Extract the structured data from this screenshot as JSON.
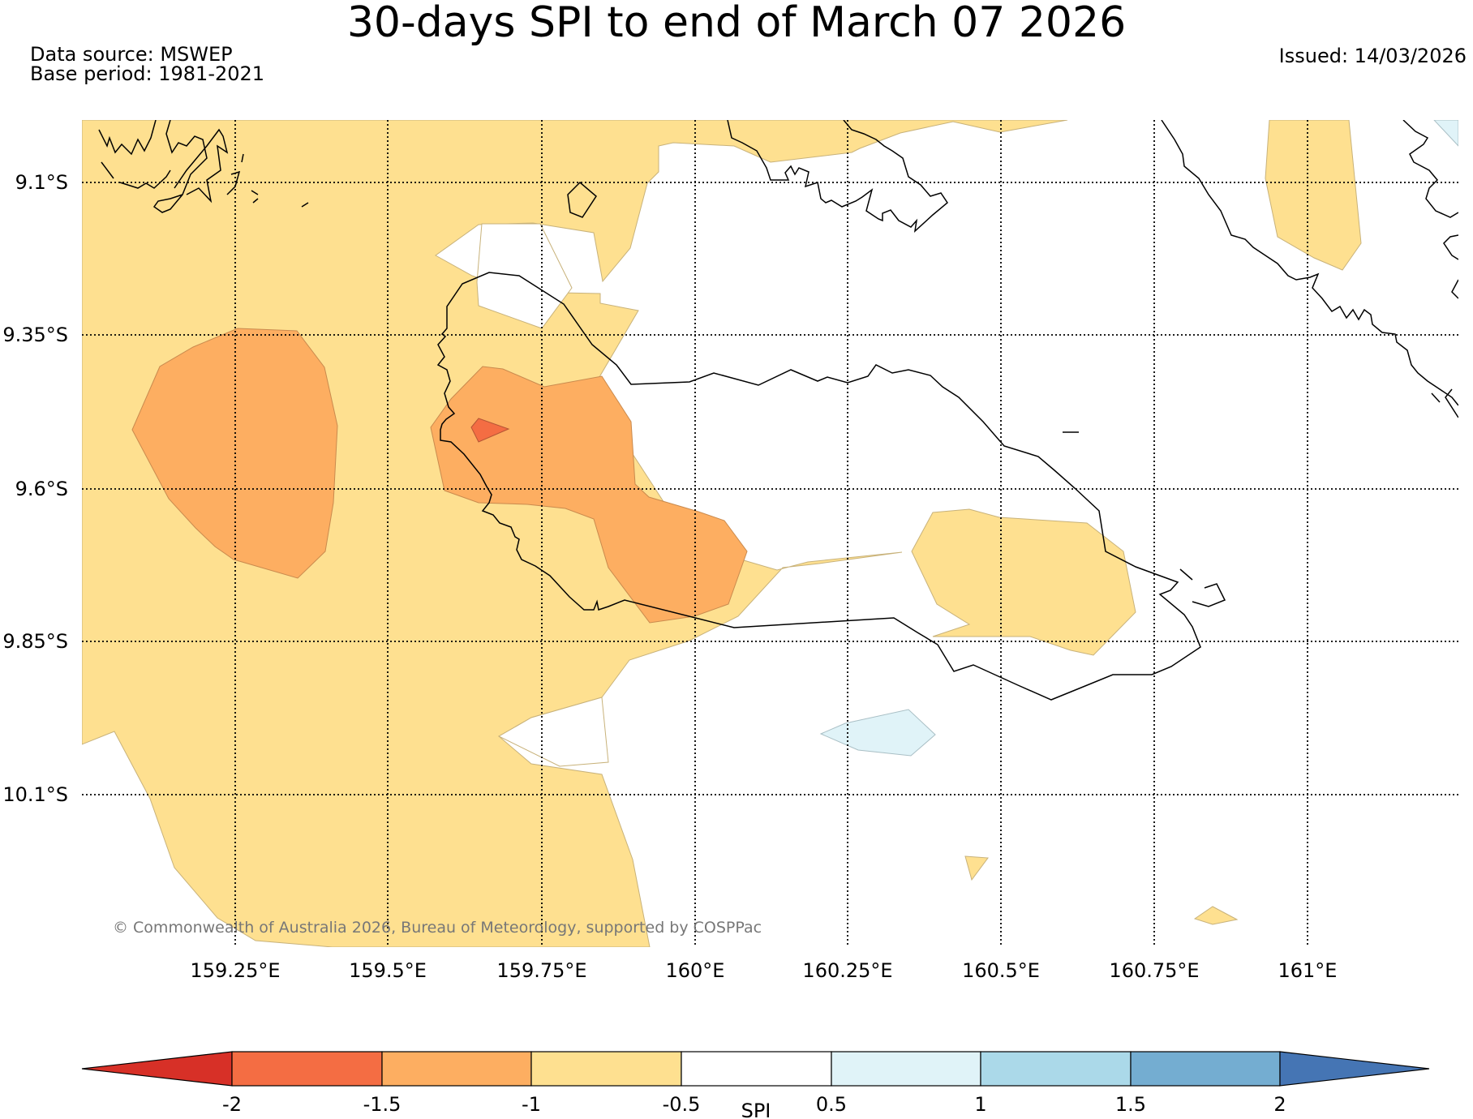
{
  "header": {
    "title": "30-days SPI to end of March 07 2026",
    "data_source": "Data source: MSWEP",
    "base_period": "Base period: 1981-2021",
    "issued": "Issued: 14/03/2026"
  },
  "map": {
    "lat_labels": [
      "9.1°S",
      "9.35°S",
      "9.6°S",
      "9.85°S",
      "10.1°S"
    ],
    "lon_labels": [
      "159.25°E",
      "159.5°E",
      "159.75°E",
      "160°E",
      "160.25°E",
      "160.5°E",
      "160.75°E",
      "161°E"
    ],
    "copyright": "© Commonwealth of Australia 2026, Bureau of Meteorology, supported by COSPPac"
  },
  "colorbar": {
    "label": "SPI",
    "ticks": [
      "-2",
      "-1.5",
      "-1",
      "-0.5",
      "0.5",
      "1",
      "1.5",
      "2"
    ],
    "colors": {
      "below_-2": "#d73027",
      "-2_to_-1.5": "#f46d43",
      "-1.5_to_-1": "#fdae61",
      "-1_to_-0.5": "#fee090",
      "-0.5_to_0.5": "#ffffff",
      "0.5_to_1": "#e0f3f8",
      "1_to_1.5": "#abd9e9",
      "1.5_to_2": "#74add1",
      "above_2": "#4575b4"
    }
  }
}
